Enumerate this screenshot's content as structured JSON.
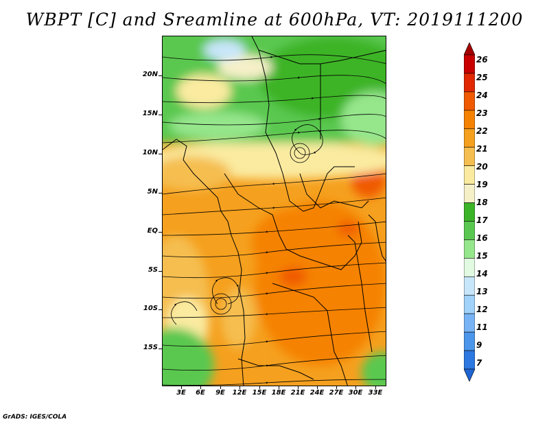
{
  "title": "WBPT [C] and Sreamline at 600hPa, VT: 2019111200",
  "footer": "GrADS: IGES/COLA",
  "lat_labels": [
    "20N",
    "15N",
    "10N",
    "5N",
    "EQ",
    "5S",
    "10S",
    "15S"
  ],
  "lon_labels": [
    "3E",
    "6E",
    "9E",
    "12E",
    "15E",
    "18E",
    "21E",
    "24E",
    "27E",
    "30E",
    "33E"
  ],
  "colorbar": {
    "labels": [
      "26",
      "25",
      "24",
      "23",
      "22",
      "21",
      "20",
      "19",
      "18",
      "17",
      "16",
      "15",
      "14",
      "13",
      "12",
      "11",
      "9",
      "7"
    ],
    "colors": [
      "#a50000",
      "#c80000",
      "#e12800",
      "#f05a00",
      "#f58200",
      "#f5a01e",
      "#f5be50",
      "#faeba0",
      "#f5f0c8",
      "#3cb428",
      "#5ac850",
      "#96e68c",
      "#e1fae1",
      "#c8e6fa",
      "#a0d2fa",
      "#78b4f5",
      "#4b96eb",
      "#2d78e1",
      "#1e64d2"
    ]
  }
}
